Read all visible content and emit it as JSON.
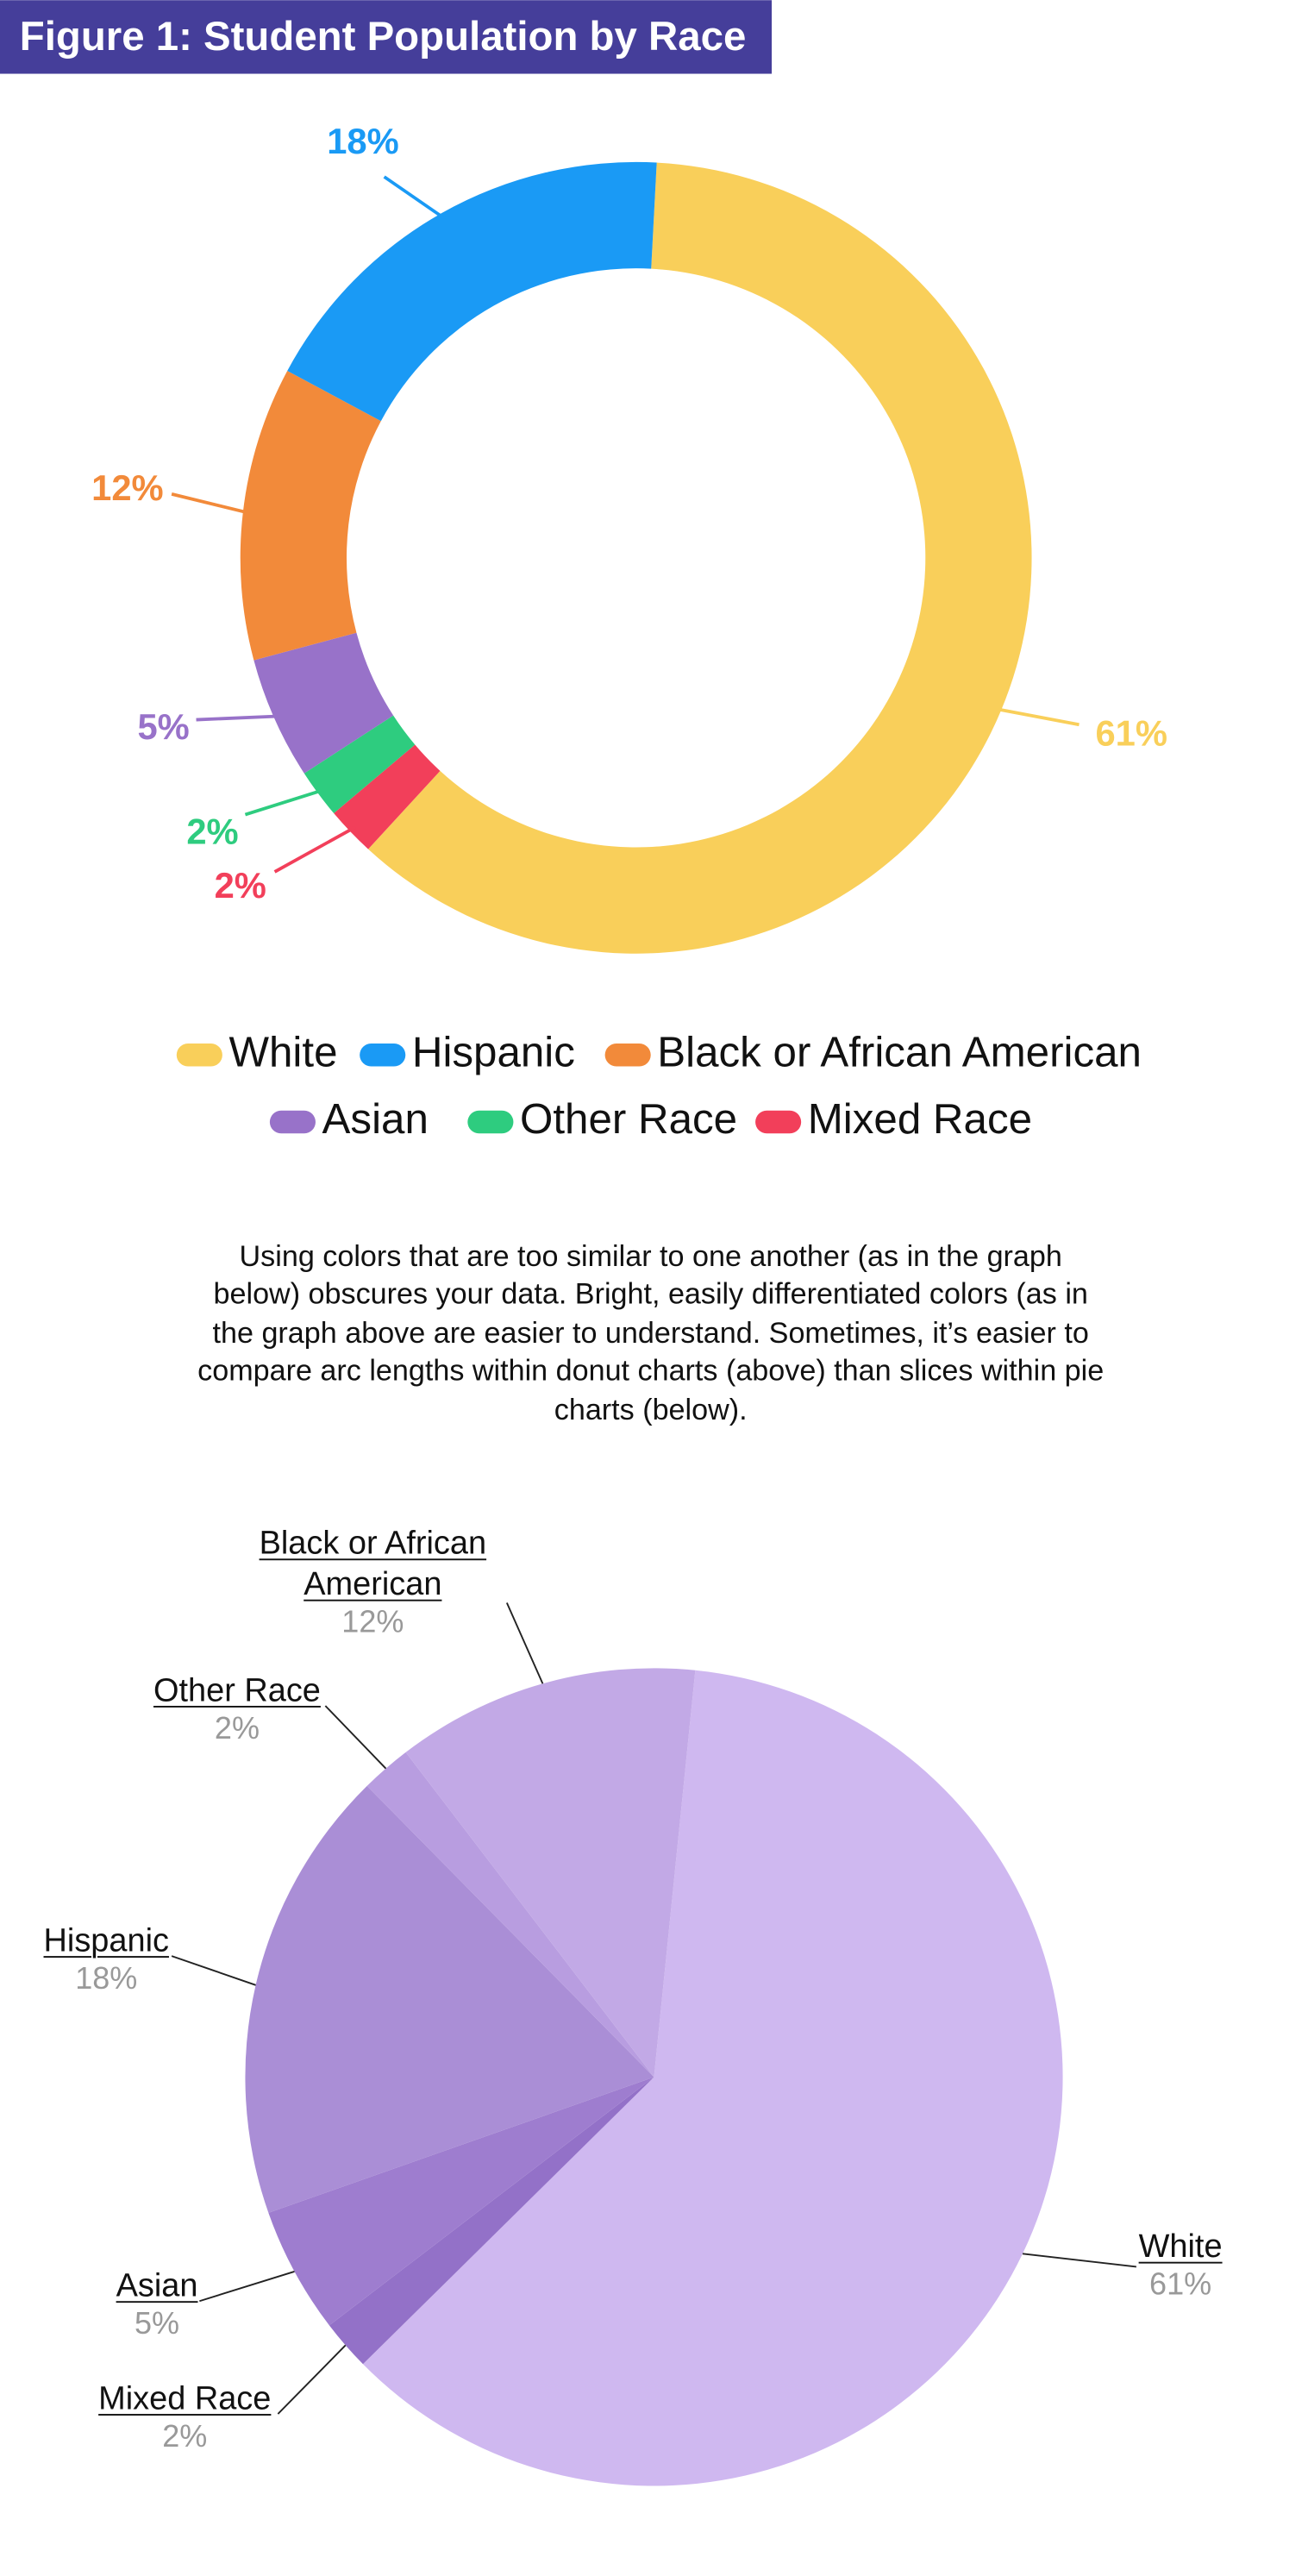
{
  "chart_data": [
    {
      "type": "donut",
      "title": "Figure 1: Student Population by Race",
      "categories": [
        "White",
        "Mixed Race",
        "Other Race",
        "Asian",
        "Black or African American",
        "Hispanic"
      ],
      "values": [
        61,
        2,
        2,
        5,
        12,
        18
      ],
      "value_labels": [
        "61%",
        "2%",
        "2%",
        "5%",
        "12%",
        "18%"
      ],
      "colors": [
        "#f9cf5a",
        "#f23f5a",
        "#2ecc7f",
        "#9872c9",
        "#f28a3a",
        "#1a9af5"
      ]
    },
    {
      "type": "pie",
      "categories": [
        "White",
        "Mixed Race",
        "Asian",
        "Hispanic",
        "Other Race",
        "Black or African American"
      ],
      "values": [
        61,
        2,
        5,
        18,
        2,
        12
      ],
      "value_labels": [
        "61%",
        "2%",
        "5%",
        "18%",
        "2%",
        "12%"
      ],
      "colors": [
        "#cfb8f0",
        "#9371c8",
        "#9e7dcf",
        "#aa8ed6",
        "#b89de0",
        "#c2a9e6"
      ]
    }
  ],
  "note": "Using colors that are too similar to one another (as in the graph below) obscures your data. Bright, easily differentiated colors (as in the graph above are easier to understand. Sometimes, it’s easier to compare arc lengths within donut charts (above) than slices within pie charts (below)."
}
